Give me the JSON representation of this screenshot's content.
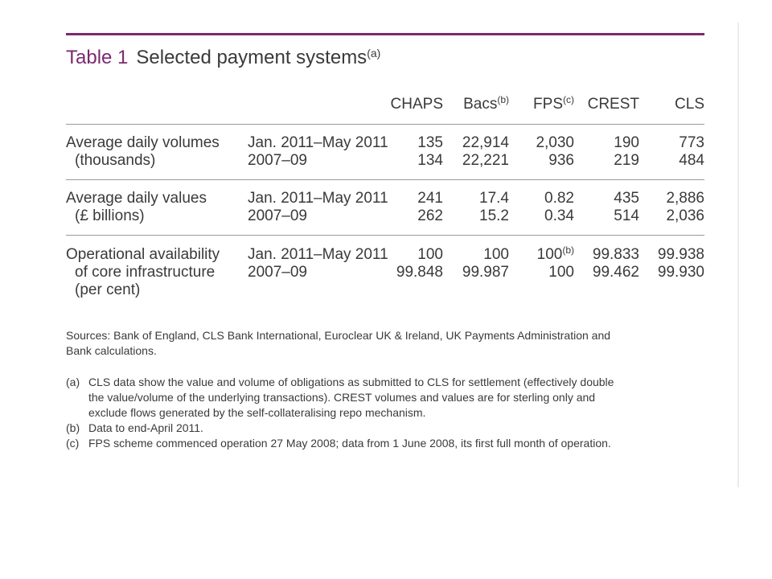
{
  "table": {
    "number": "Table 1",
    "title": "Selected payment systems",
    "title_note": "(a)",
    "headers": [
      {
        "label": "CHAPS",
        "note": ""
      },
      {
        "label": "Bacs",
        "note": "(b)"
      },
      {
        "label": "FPS",
        "note": "(c)"
      },
      {
        "label": "CREST",
        "note": ""
      },
      {
        "label": "CLS",
        "note": ""
      }
    ],
    "groups": [
      {
        "label_line1": "Average daily volumes",
        "label_line2": "(thousands)",
        "label_line3": "",
        "rows": [
          {
            "period": "Jan. 2011–May 2011",
            "values": [
              "135",
              "22,914",
              "2,030",
              "190",
              "773"
            ],
            "fps_note": ""
          },
          {
            "period": "2007–09",
            "values": [
              "134",
              "22,221",
              "936",
              "219",
              "484"
            ],
            "fps_note": ""
          }
        ]
      },
      {
        "label_line1": "Average daily values",
        "label_line2": "(£ billions)",
        "label_line3": "",
        "rows": [
          {
            "period": "Jan. 2011–May 2011",
            "values": [
              "241",
              "17.4",
              "0.82",
              "435",
              "2,886"
            ],
            "fps_note": ""
          },
          {
            "period": "2007–09",
            "values": [
              "262",
              "15.2",
              "0.34",
              "514",
              "2,036"
            ],
            "fps_note": ""
          }
        ]
      },
      {
        "label_line1": "Operational availability",
        "label_line2": "of core infrastructure",
        "label_line3": "(per cent)",
        "rows": [
          {
            "period": "Jan. 2011–May 2011",
            "values": [
              "100",
              "100",
              "100",
              "99.833",
              "99.938"
            ],
            "fps_note": "(b)"
          },
          {
            "period": "2007–09",
            "values": [
              "99.848",
              "99.987",
              "100",
              "99.462",
              "99.930"
            ],
            "fps_note": ""
          }
        ]
      }
    ]
  },
  "sources": {
    "line1": "Sources:  Bank of England, CLS Bank International, Euroclear UK & Ireland, UK Payments Administration and",
    "line2": "Bank calculations."
  },
  "footnotes": [
    {
      "key": "(a)",
      "lines": [
        "CLS data show the value and volume of obligations as submitted to CLS for settlement (effectively double",
        "the value/volume of the underlying transactions).  CREST volumes and values are for sterling only and",
        "exclude flows generated by the self-collateralising repo mechanism."
      ]
    },
    {
      "key": "(b)",
      "lines": [
        "Data to end-April 2011."
      ]
    },
    {
      "key": "(c)",
      "lines": [
        "FPS scheme commenced operation 27 May 2008;  data from 1 June 2008, its first full month of operation."
      ]
    }
  ],
  "colors": {
    "accent": "#7b2a6e",
    "text": "#3a3a3a",
    "rule": "#9a9a9a"
  }
}
